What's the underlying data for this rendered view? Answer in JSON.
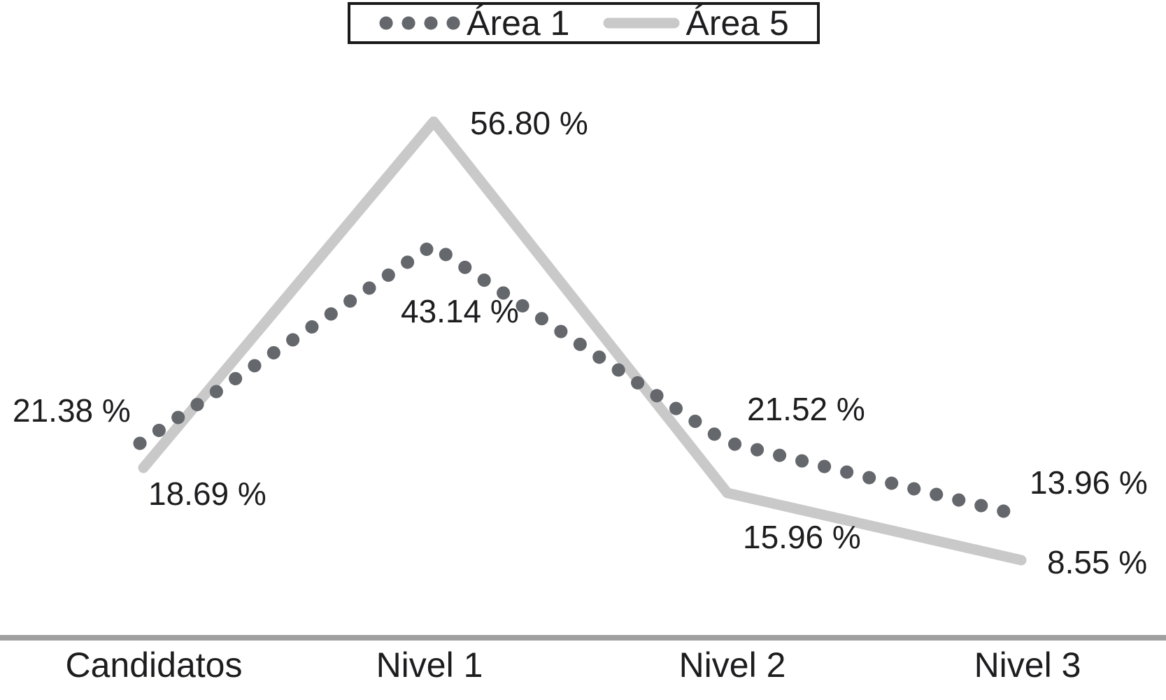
{
  "chart_data": {
    "type": "line",
    "categories": [
      "Candidatos",
      "Nivel 1",
      "Nivel 2",
      "Nivel 3"
    ],
    "series": [
      {
        "name": "Área 1",
        "style": "dotted",
        "color": "#64676b",
        "values": [
          21.38,
          43.14,
          21.52,
          13.96
        ],
        "labels": [
          "21.38 %",
          "43.14 %",
          "21.52 %",
          "13.96 %"
        ]
      },
      {
        "name": "Área 5",
        "style": "solid",
        "color": "#c9c9c9",
        "values": [
          18.69,
          56.8,
          15.96,
          8.55
        ],
        "labels": [
          "18.69 %",
          "56.80 %",
          "15.96 %",
          "8.55 %"
        ]
      }
    ],
    "title": "",
    "xlabel": "",
    "ylabel": "",
    "ylim": [
      0,
      70
    ],
    "grid": false,
    "legend_position": "top",
    "axis_line_color": "#a0a0a0"
  }
}
